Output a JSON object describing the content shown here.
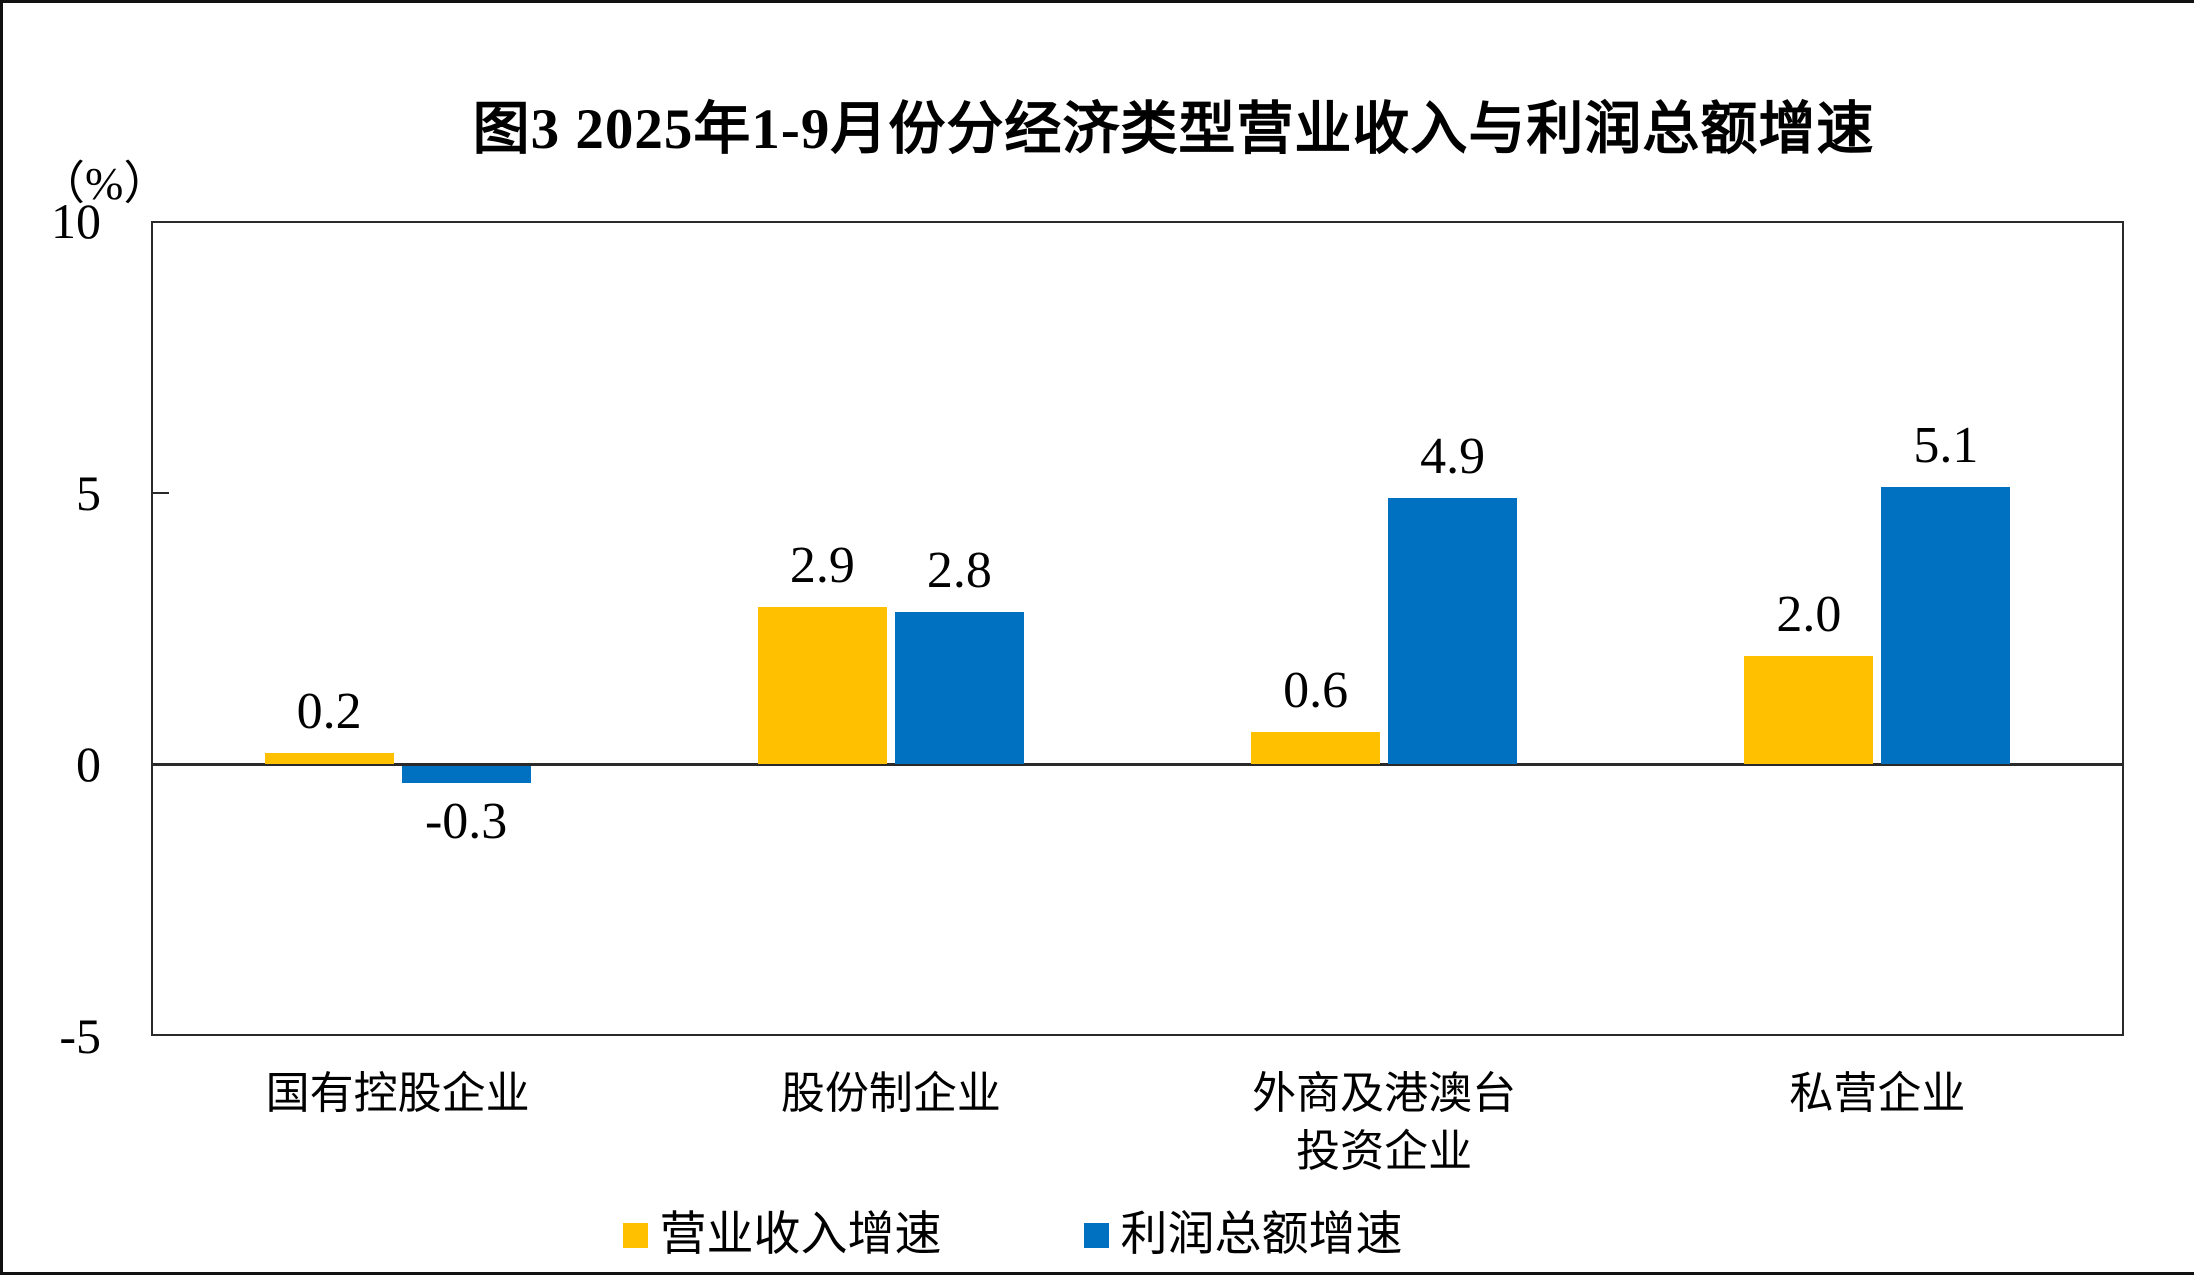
{
  "chart_data": {
    "type": "bar",
    "title": "图3 2025年1-9月份分经济类型营业收入与利润总额增速",
    "ylabel": "（%）",
    "ylim": [
      -5,
      10
    ],
    "yticks": [
      10,
      5,
      0,
      -5
    ],
    "grid": false,
    "legend_position": "bottom",
    "categories": [
      [
        "国有控股企业"
      ],
      [
        "股份制企业"
      ],
      [
        "外商及港澳台",
        "投资企业"
      ],
      [
        "私营企业"
      ]
    ],
    "series": [
      {
        "name": "营业收入增速",
        "color": "#FFC000",
        "values": [
          0.2,
          2.9,
          0.6,
          2.0
        ]
      },
      {
        "name": "利润总额增速",
        "color": "#0070C0",
        "values": [
          -0.3,
          2.8,
          4.9,
          5.1
        ]
      }
    ],
    "data_label_format": "one-decimal"
  }
}
